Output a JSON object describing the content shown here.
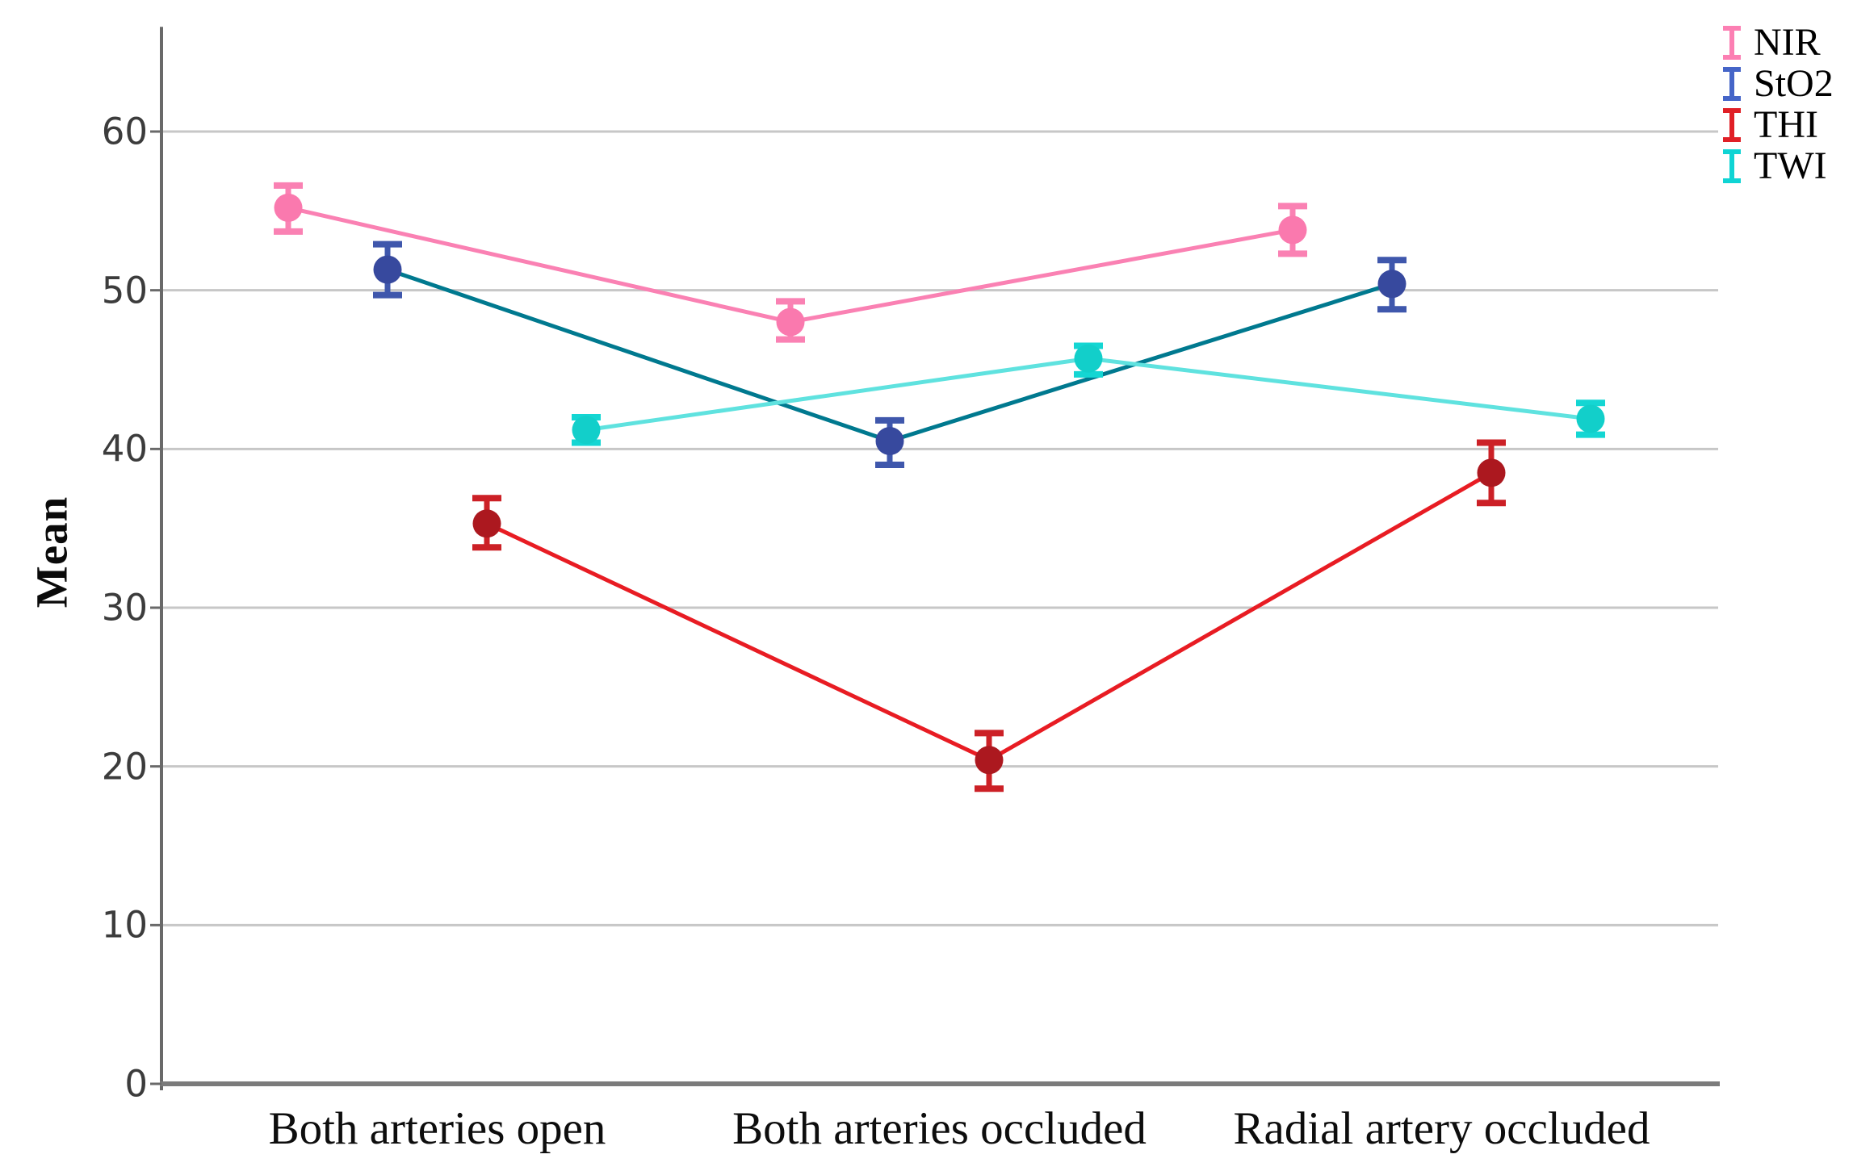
{
  "chart_data": {
    "type": "line",
    "title": "",
    "xlabel": "",
    "ylabel": "Mean",
    "categories": [
      "Both arteries open",
      "Both arteries occluded",
      "Radial artery occluded"
    ],
    "y_ticks": [
      0,
      10,
      20,
      30,
      40,
      50,
      60
    ],
    "ylim": [
      0,
      66.6
    ],
    "grid": "horizontal-gray",
    "legend_position": "top-right",
    "marker": "circle-with-error-bars",
    "series": [
      {
        "name": "NIR",
        "values": [
          55.2,
          48.0,
          53.8
        ],
        "error_low": [
          53.7,
          46.9,
          52.3
        ],
        "error_high": [
          56.6,
          49.3,
          55.3
        ],
        "marker_color": "#FA79AE",
        "line_color": "#FA81B3",
        "error_color": "#FA81B3",
        "legend_color": "#FC7FB3"
      },
      {
        "name": "StO2",
        "values": [
          51.3,
          40.5,
          50.4
        ],
        "error_low": [
          49.7,
          39.0,
          48.8
        ],
        "error_high": [
          52.9,
          41.8,
          51.9
        ],
        "marker_color": "#37499E",
        "line_color": "#00798F",
        "error_color": "#3F57AC",
        "legend_color": "#4565C8"
      },
      {
        "name": "THI",
        "values": [
          35.3,
          20.4,
          38.5
        ],
        "error_low": [
          33.8,
          18.6,
          36.6
        ],
        "error_high": [
          36.9,
          22.1,
          40.4
        ],
        "marker_color": "#AC181F",
        "line_color": "#E81C23",
        "error_color": "#CC2026",
        "legend_color": "#E01F26"
      },
      {
        "name": "TWI",
        "values": [
          41.2,
          45.7,
          41.9
        ],
        "error_low": [
          40.4,
          44.7,
          40.9
        ],
        "error_high": [
          42.0,
          46.5,
          42.9
        ],
        "marker_color": "#12CFCA",
        "line_color": "#5FE2DF",
        "error_color": "#14D6D3",
        "legend_color": "#0FD4D4"
      }
    ],
    "axis_colors": {
      "grid": "#c7c7c7",
      "y_axis": "#696969",
      "x_axis": "#7b7b7b",
      "tick": "#696969"
    }
  }
}
